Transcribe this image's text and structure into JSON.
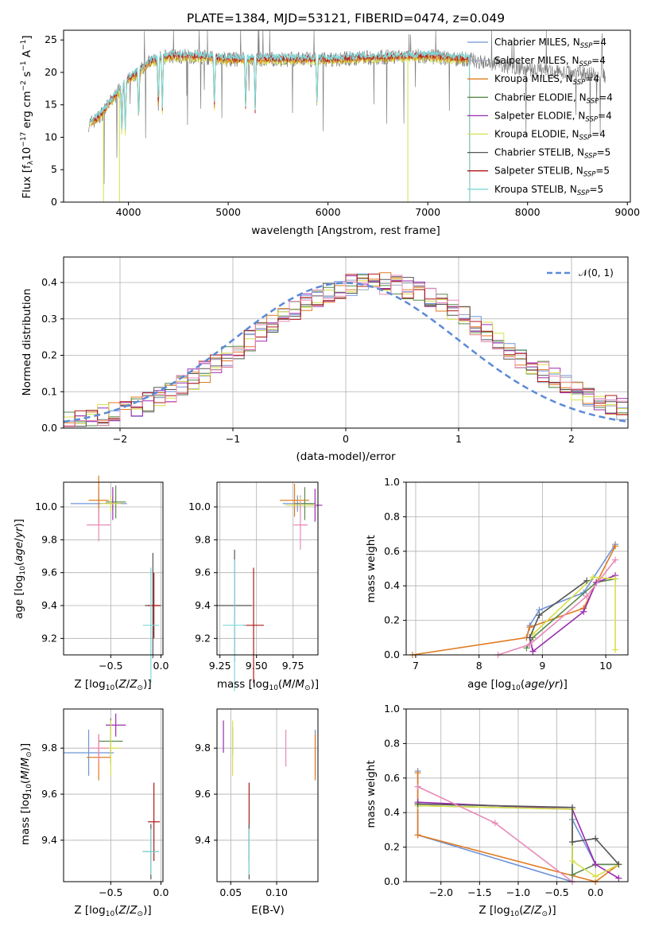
{
  "colors": {
    "chabrier_miles": "#6f94d8",
    "salpeter_miles": "#9aa3b8",
    "kroupa_miles": "#e07b20",
    "chabrier_elodie": "#5a8a4a",
    "salpeter_elodie": "#9a2cb0",
    "kroupa_elodie": "#d7e04a",
    "chabrier_stelib": "#555555",
    "salpeter_stelib": "#b01818",
    "kroupa_stelib": "#7fd7d7",
    "pink": "#e88ab8",
    "gaussian": "#5b8ad8"
  },
  "chart_data": [
    {
      "id": "spectrum",
      "type": "line",
      "title": "PLATE=1384, MJD=53121, FIBERID=0474, z=0.049",
      "xlabel": "wavelength [Angstrom, rest frame]",
      "ylabel": "Flux [fλ10⁻¹⁷ erg cm⁻² s⁻¹ A⁻¹]",
      "xlim": [
        3350,
        9030
      ],
      "ylim": [
        0,
        26.5
      ],
      "xticks": [
        "4000",
        "5000",
        "6000",
        "7000",
        "8000",
        "9000"
      ],
      "yticks": [
        "0",
        "5",
        "10",
        "15",
        "20",
        "25"
      ],
      "data_range": [
        3600,
        8780
      ],
      "model_range": [
        3620,
        7420
      ],
      "continuum_x": [
        3600,
        3700,
        3800,
        3900,
        4000,
        4100,
        4200,
        4300,
        4400,
        4600,
        4800,
        5000,
        5500,
        6000,
        6500,
        7000,
        7400,
        8000,
        8780
      ],
      "continuum_y": [
        12,
        13,
        15,
        17,
        19,
        20,
        21.5,
        22,
        22.5,
        22.5,
        22.3,
        22,
        22,
        22,
        22.3,
        22.5,
        22,
        20.5,
        19.5
      ],
      "absorption_lines": [
        3934,
        3969,
        4102,
        4300,
        4340,
        4861,
        5175,
        5270,
        5890
      ],
      "legend": [
        {
          "label": "Chabrier MILES, N",
          "sub": "SSP",
          "tail": "=4",
          "color": "chabrier_miles"
        },
        {
          "label": "Salpeter MILES, N",
          "sub": "SSP",
          "tail": "=4",
          "color": "salpeter_miles"
        },
        {
          "label": "Kroupa MILES, N",
          "sub": "SSP",
          "tail": "=4",
          "color": "kroupa_miles"
        },
        {
          "label": "Chabrier ELODIE, N",
          "sub": "SSP",
          "tail": "=4",
          "color": "chabrier_elodie"
        },
        {
          "label": "Salpeter ELODIE, N",
          "sub": "SSP",
          "tail": "=4",
          "color": "salpeter_elodie"
        },
        {
          "label": "Kroupa ELODIE, N",
          "sub": "SSP",
          "tail": "=4",
          "color": "kroupa_elodie"
        },
        {
          "label": "Chabrier STELIB, N",
          "sub": "SSP",
          "tail": "=5",
          "color": "chabrier_stelib"
        },
        {
          "label": "Salpeter STELIB, N",
          "sub": "SSP",
          "tail": "=5",
          "color": "salpeter_stelib"
        },
        {
          "label": "Kroupa STELIB, N",
          "sub": "SSP",
          "tail": "=5",
          "color": "kroupa_stelib"
        }
      ]
    },
    {
      "id": "residuals",
      "type": "histogram",
      "xlabel": "(data-model)/error",
      "ylabel": "Normed distribution",
      "xlim": [
        -2.5,
        2.5
      ],
      "ylim": [
        0,
        0.47
      ],
      "xticks": [
        "−2",
        "−1",
        "0",
        "1",
        "2"
      ],
      "yticks": [
        "0.0",
        "0.1",
        "0.2",
        "0.3",
        "0.4"
      ],
      "bin_width": 0.1,
      "legend": [
        {
          "label": "𝒩(0, 1)",
          "color": "gaussian"
        }
      ],
      "series_colors": [
        "chabrier_miles",
        "salpeter_miles",
        "kroupa_miles",
        "chabrier_elodie",
        "salpeter_elodie",
        "kroupa_elodie",
        "chabrier_stelib",
        "salpeter_stelib",
        "pink"
      ]
    },
    {
      "id": "age_vs_z",
      "type": "errorbar",
      "xlabel": "Z [log₁₀(Z/Z⊙)]",
      "ylabel": "age  [log₁₀(age/yr)]",
      "xlim": [
        -0.97,
        0.02
      ],
      "ylim": [
        9.1,
        10.15
      ],
      "xticks": [
        {
          "v": -0.5,
          "t": "−0.5"
        },
        {
          "v": 0.0,
          "t": "0.0"
        }
      ],
      "yticks": [
        {
          "v": 9.2,
          "t": "9.2"
        },
        {
          "v": 9.4,
          "t": "9.4"
        },
        {
          "v": 9.6,
          "t": "9.6"
        },
        {
          "v": 9.8,
          "t": "9.8"
        },
        {
          "v": 10.0,
          "t": "10.0"
        }
      ],
      "points": [
        {
          "x": -0.62,
          "xerr": 0.28,
          "y": 10.02,
          "yerr": 0.1,
          "color": "chabrier_miles"
        },
        {
          "x": -0.48,
          "xerr": 0.12,
          "y": 10.02,
          "yerr": 0.04,
          "color": "salpeter_miles"
        },
        {
          "x": -0.62,
          "xerr": 0.1,
          "y": 10.04,
          "yerr": 0.15,
          "color": "kroupa_miles"
        },
        {
          "x": -0.45,
          "xerr": 0.1,
          "y": 10.03,
          "yerr": 0.1,
          "color": "chabrier_elodie"
        },
        {
          "x": -0.48,
          "xerr": 0.08,
          "y": 10.02,
          "yerr": 0.1,
          "color": "salpeter_elodie"
        },
        {
          "x": -0.5,
          "xerr": 0.1,
          "y": 10.02,
          "yerr": 0.05,
          "color": "kroupa_elodie"
        },
        {
          "x": -0.08,
          "xerr": 0.08,
          "y": 9.4,
          "yerr": 0.32,
          "color": "chabrier_stelib"
        },
        {
          "x": -0.07,
          "xerr": 0.06,
          "y": 9.4,
          "yerr": 0.2,
          "color": "salpeter_stelib"
        },
        {
          "x": -0.1,
          "xerr": 0.08,
          "y": 9.28,
          "yerr": 0.35,
          "color": "kroupa_stelib"
        },
        {
          "x": -0.62,
          "xerr": 0.12,
          "y": 9.89,
          "yerr": 0.1,
          "color": "pink"
        }
      ]
    },
    {
      "id": "age_vs_mass",
      "type": "errorbar",
      "xlabel": "mass [log₁₀(M/M⊙)]",
      "ylabel": "",
      "xlim": [
        9.23,
        9.92
      ],
      "ylim": [
        9.1,
        10.15
      ],
      "xticks": [
        {
          "v": 9.25,
          "t": "9.25"
        },
        {
          "v": 9.5,
          "t": "9.50"
        },
        {
          "v": 9.75,
          "t": "9.75"
        }
      ],
      "yticks": [
        {
          "v": 9.2,
          "t": "9.2"
        },
        {
          "v": 9.4,
          "t": "9.4"
        },
        {
          "v": 9.6,
          "t": "9.6"
        },
        {
          "v": 9.8,
          "t": "9.8"
        },
        {
          "v": 10.0,
          "t": "10.0"
        }
      ],
      "points": [
        {
          "x": 9.78,
          "xerr": 0.1,
          "y": 10.02,
          "yerr": 0.05,
          "color": "chabrier_miles"
        },
        {
          "x": 9.8,
          "xerr": 0.08,
          "y": 10.02,
          "yerr": 0.05,
          "color": "salpeter_miles"
        },
        {
          "x": 9.76,
          "xerr": 0.1,
          "y": 10.04,
          "yerr": 0.1,
          "color": "kroupa_miles"
        },
        {
          "x": 9.83,
          "xerr": 0.07,
          "y": 10.02,
          "yerr": 0.1,
          "color": "chabrier_elodie"
        },
        {
          "x": 9.9,
          "xerr": 0.05,
          "y": 10.01,
          "yerr": 0.1,
          "color": "salpeter_elodie"
        },
        {
          "x": 9.8,
          "xerr": 0.1,
          "y": 10.01,
          "yerr": 0.05,
          "color": "kroupa_elodie"
        },
        {
          "x": 9.35,
          "xerr": 0.12,
          "y": 9.4,
          "yerr": 0.34,
          "color": "chabrier_stelib"
        },
        {
          "x": 9.48,
          "xerr": 0.07,
          "y": 9.28,
          "yerr": 0.35,
          "color": "salpeter_stelib"
        },
        {
          "x": 9.35,
          "xerr": 0.08,
          "y": 9.28,
          "yerr": 0.4,
          "color": "kroupa_stelib"
        },
        {
          "x": 9.8,
          "xerr": 0.05,
          "y": 9.89,
          "yerr": 0.15,
          "color": "pink"
        }
      ]
    },
    {
      "id": "mass_weight_vs_age",
      "type": "line",
      "xlabel": "age  [log₁₀(age/yr)]",
      "ylabel": "mass weight",
      "xlim": [
        6.85,
        10.35
      ],
      "ylim": [
        0,
        1.0
      ],
      "xticks": [
        {
          "v": 7,
          "t": "7"
        },
        {
          "v": 8,
          "t": "8"
        },
        {
          "v": 9,
          "t": "9"
        },
        {
          "v": 10,
          "t": "10"
        }
      ],
      "yticks": [
        {
          "v": 0,
          "t": "0.0"
        },
        {
          "v": 0.2,
          "t": "0.2"
        },
        {
          "v": 0.4,
          "t": "0.4"
        },
        {
          "v": 0.6,
          "t": "0.6"
        },
        {
          "v": 0.8,
          "t": "0.8"
        },
        {
          "v": 1.0,
          "t": "1.0"
        }
      ],
      "series": [
        {
          "color": "chabrier_miles",
          "x": [
            8.75,
            8.8,
            8.95,
            9.65,
            10.15
          ],
          "y": [
            0.1,
            0.17,
            0.26,
            0.36,
            0.64
          ]
        },
        {
          "color": "kroupa_miles",
          "x": [
            6.95,
            8.75,
            8.8,
            9.65,
            10.15
          ],
          "y": [
            0.0,
            0.1,
            0.16,
            0.27,
            0.63
          ]
        },
        {
          "color": "chabrier_elodie",
          "x": [
            8.75,
            8.85,
            9.85,
            10.15
          ],
          "y": [
            0.04,
            0.1,
            0.42,
            0.44
          ]
        },
        {
          "color": "salpeter_elodie",
          "x": [
            8.8,
            8.85,
            9.65,
            9.85,
            10.15
          ],
          "y": [
            0.1,
            0.02,
            0.25,
            0.42,
            0.46
          ]
        },
        {
          "color": "kroupa_elodie",
          "x": [
            8.85,
            9.8,
            10.15,
            10.15
          ],
          "y": [
            0.12,
            0.45,
            0.44,
            0.03
          ]
        },
        {
          "color": "chabrier_stelib",
          "x": [
            8.8,
            8.95,
            9.7
          ],
          "y": [
            0.1,
            0.23,
            0.43
          ]
        },
        {
          "color": "pink",
          "x": [
            8.3,
            8.8,
            9.7,
            10.15
          ],
          "y": [
            0.0,
            0.06,
            0.34,
            0.55
          ]
        }
      ]
    },
    {
      "id": "mass_vs_z",
      "type": "errorbar",
      "xlabel": "Z [log₁₀(Z/Z⊙)]",
      "ylabel": "mass [log₁₀(M/M⊙)]",
      "xlim": [
        -0.97,
        0.02
      ],
      "ylim": [
        9.22,
        9.97
      ],
      "xticks": [
        {
          "v": -0.5,
          "t": "−0.5"
        },
        {
          "v": 0.0,
          "t": "0.0"
        }
      ],
      "yticks": [
        {
          "v": 9.4,
          "t": "9.4"
        },
        {
          "v": 9.6,
          "t": "9.6"
        },
        {
          "v": 9.8,
          "t": "9.8"
        }
      ],
      "points": [
        {
          "x": -0.72,
          "xerr": 0.25,
          "y": 9.78,
          "yerr": 0.1,
          "color": "chabrier_miles"
        },
        {
          "x": -0.62,
          "xerr": 0.12,
          "y": 9.76,
          "yerr": 0.1,
          "color": "kroupa_miles"
        },
        {
          "x": -0.5,
          "xerr": 0.12,
          "y": 9.83,
          "yerr": 0.1,
          "color": "chabrier_elodie"
        },
        {
          "x": -0.45,
          "xerr": 0.1,
          "y": 9.9,
          "yerr": 0.05,
          "color": "salpeter_elodie"
        },
        {
          "x": -0.5,
          "xerr": 0.1,
          "y": 9.8,
          "yerr": 0.12,
          "color": "kroupa_elodie"
        },
        {
          "x": -0.1,
          "xerr": 0.08,
          "y": 9.35,
          "yerr": 0.12,
          "color": "chabrier_stelib"
        },
        {
          "x": -0.07,
          "xerr": 0.06,
          "y": 9.48,
          "yerr": 0.17,
          "color": "salpeter_stelib"
        },
        {
          "x": -0.1,
          "xerr": 0.08,
          "y": 9.35,
          "yerr": 0.1,
          "color": "kroupa_stelib"
        },
        {
          "x": -0.62,
          "xerr": 0.1,
          "y": 9.8,
          "yerr": 0.06,
          "color": "pink"
        }
      ]
    },
    {
      "id": "mass_vs_ebv",
      "type": "errorbar",
      "xlabel": "E(B-V)",
      "ylabel": "",
      "xlim": [
        0.035,
        0.145
      ],
      "ylim": [
        9.22,
        9.97
      ],
      "xticks": [
        {
          "v": 0.05,
          "t": "0.05"
        },
        {
          "v": 0.1,
          "t": "0.10"
        }
      ],
      "yticks": [
        {
          "v": 9.4,
          "t": "9.4"
        },
        {
          "v": 9.6,
          "t": "9.6"
        },
        {
          "v": 9.8,
          "t": "9.8"
        }
      ],
      "points": [
        {
          "x": 0.042,
          "xerr": 0,
          "y": 9.85,
          "yerr": 0.07,
          "color": "salpeter_elodie"
        },
        {
          "x": 0.052,
          "xerr": 0,
          "y": 9.83,
          "yerr": 0.06,
          "color": "chabrier_elodie"
        },
        {
          "x": 0.052,
          "xerr": 0,
          "y": 9.8,
          "yerr": 0.12,
          "color": "kroupa_elodie"
        },
        {
          "x": 0.07,
          "xerr": 0,
          "y": 9.48,
          "yerr": 0.17,
          "color": "salpeter_stelib"
        },
        {
          "x": 0.07,
          "xerr": 0,
          "y": 9.35,
          "yerr": 0.12,
          "color": "chabrier_stelib"
        },
        {
          "x": 0.07,
          "xerr": 0,
          "y": 9.35,
          "yerr": 0.1,
          "color": "kroupa_stelib"
        },
        {
          "x": 0.11,
          "xerr": 0,
          "y": 9.8,
          "yerr": 0.08,
          "color": "pink"
        },
        {
          "x": 0.142,
          "xerr": 0,
          "y": 9.78,
          "yerr": 0.1,
          "color": "chabrier_miles"
        },
        {
          "x": 0.142,
          "xerr": 0,
          "y": 9.76,
          "yerr": 0.1,
          "color": "kroupa_miles"
        }
      ]
    },
    {
      "id": "mass_weight_vs_z",
      "type": "line",
      "xlabel": "Z [log₁₀(Z/Z⊙)]",
      "ylabel": "mass weight",
      "xlim": [
        -2.45,
        0.42
      ],
      "ylim": [
        0,
        1.0
      ],
      "xticks": [
        {
          "v": -2.0,
          "t": "−2.0"
        },
        {
          "v": -1.5,
          "t": "−1.5"
        },
        {
          "v": -1.0,
          "t": "−1.0"
        },
        {
          "v": -0.5,
          "t": "−0.5"
        },
        {
          "v": 0.0,
          "t": "0.0"
        }
      ],
      "yticks": [
        {
          "v": 0,
          "t": "0.0"
        },
        {
          "v": 0.2,
          "t": "0.2"
        },
        {
          "v": 0.4,
          "t": "0.4"
        },
        {
          "v": 0.6,
          "t": "0.6"
        },
        {
          "v": 0.8,
          "t": "0.8"
        },
        {
          "v": 1.0,
          "t": "1.0"
        }
      ],
      "series": [
        {
          "color": "chabrier_miles",
          "x": [
            -2.3,
            -2.3,
            -0.3,
            -0.3,
            0.0,
            0.3
          ],
          "y": [
            0.64,
            0.27,
            0.0,
            0.36,
            0.1,
            0.1
          ]
        },
        {
          "color": "kroupa_miles",
          "x": [
            -2.3,
            -2.3,
            0.0,
            0.3
          ],
          "y": [
            0.63,
            0.27,
            0.0,
            0.1
          ]
        },
        {
          "color": "chabrier_elodie",
          "x": [
            -2.3,
            -0.3,
            -0.3,
            0.0,
            0.3
          ],
          "y": [
            0.44,
            0.42,
            0.04,
            0.1,
            0.1
          ]
        },
        {
          "color": "salpeter_elodie",
          "x": [
            -2.3,
            -0.3,
            0.0,
            0.3
          ],
          "y": [
            0.46,
            0.42,
            0.1,
            0.02
          ]
        },
        {
          "color": "kroupa_elodie",
          "x": [
            -2.3,
            -0.3,
            -0.3,
            0.0,
            0.3
          ],
          "y": [
            0.44,
            0.42,
            0.12,
            0.03,
            0.1
          ]
        },
        {
          "color": "chabrier_stelib",
          "x": [
            -2.3,
            -0.3,
            -0.3,
            0.0,
            0.3
          ],
          "y": [
            0.45,
            0.43,
            0.23,
            0.25,
            0.1
          ]
        },
        {
          "color": "pink",
          "x": [
            -2.3,
            -1.3,
            -0.3
          ],
          "y": [
            0.55,
            0.34,
            0.0
          ]
        }
      ]
    }
  ]
}
